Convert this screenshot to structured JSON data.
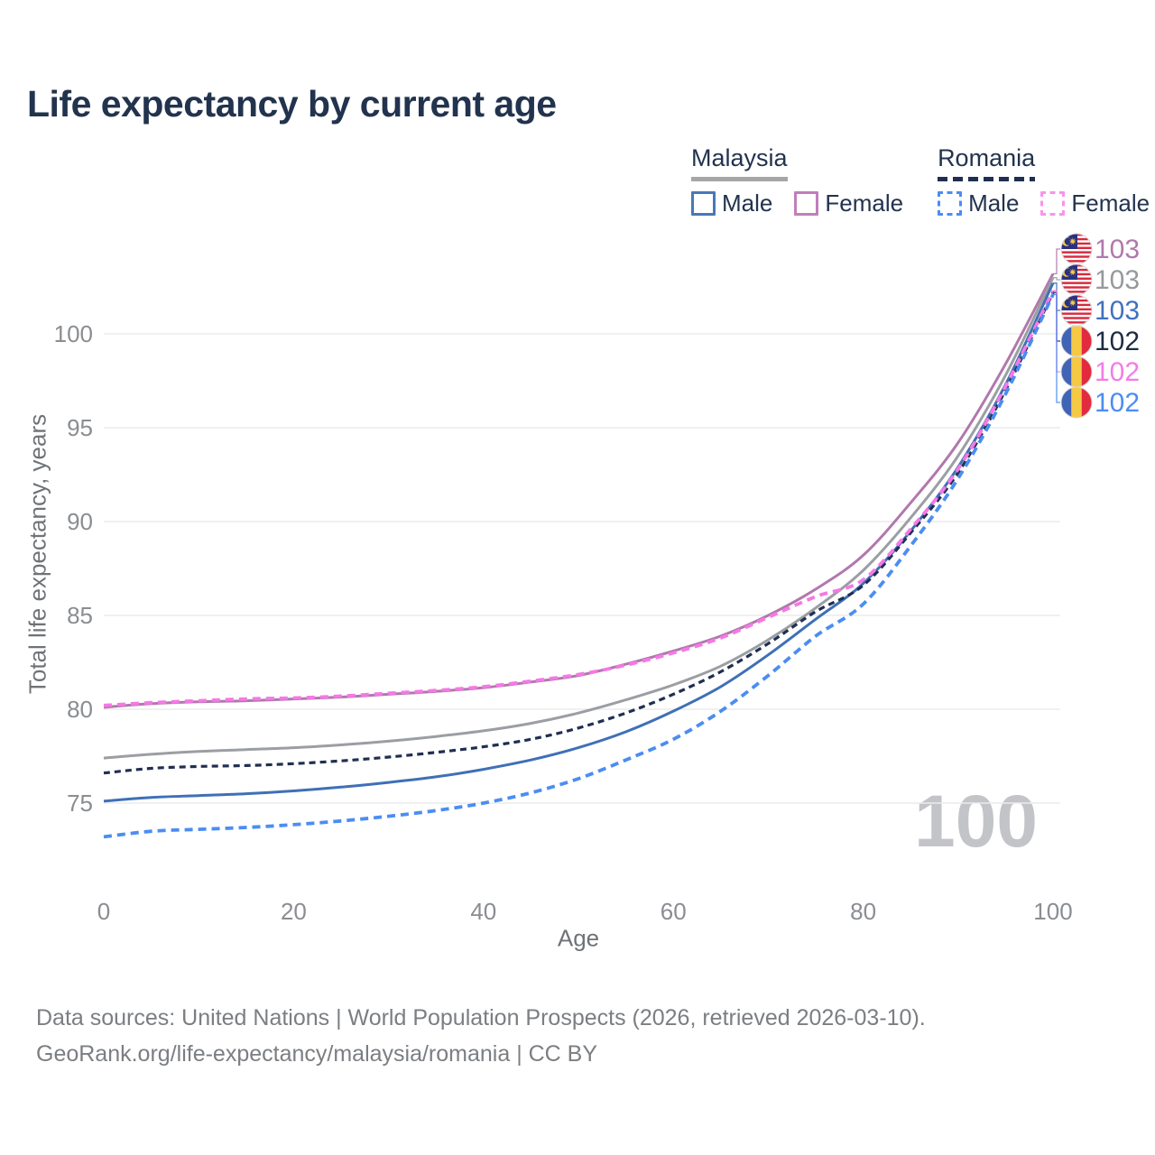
{
  "title": "Life expectancy by current age",
  "legend": {
    "groups": [
      {
        "country": "Malaysia",
        "line_style": "solid",
        "underline_color": "#a6a6a6",
        "items": [
          {
            "label": "Male",
            "color": "#3e70b6",
            "dashed": false
          },
          {
            "label": "Female",
            "color": "#b178ad",
            "dashed": false
          }
        ]
      },
      {
        "country": "Romania",
        "line_style": "dashed",
        "underline_color": "#1f2f51",
        "items": [
          {
            "label": "Male",
            "color": "#4b8df2",
            "dashed": true
          },
          {
            "label": "Female",
            "color": "#f678e6",
            "dashed": true
          }
        ]
      }
    ]
  },
  "y_axis": {
    "label": "Total life expectancy, years"
  },
  "x_axis": {
    "label": "Age"
  },
  "watermark": "100",
  "footer": {
    "line1": "Data sources: United Nations | World Population Prospects (2026, retrieved 2026-03-10).",
    "line2": "GeoRank.org/life-expectancy/malaysia/romania | CC BY"
  },
  "chart_data": {
    "type": "line",
    "title": "Life expectancy by current age",
    "xlabel": "Age",
    "ylabel": "Total life expectancy, years",
    "x_ticks": [
      0,
      20,
      40,
      60,
      80,
      100
    ],
    "y_ticks": [
      75,
      80,
      85,
      90,
      95,
      100
    ],
    "xlim": [
      0,
      100
    ],
    "ylim": [
      72.5,
      104
    ],
    "grid": "horizontal",
    "legend_position": "top-right",
    "x": [
      0,
      5,
      10,
      15,
      20,
      25,
      30,
      35,
      40,
      45,
      50,
      55,
      60,
      65,
      70,
      75,
      80,
      85,
      90,
      95,
      100
    ],
    "series": [
      {
        "name": "Malaysia Female",
        "country": "Malaysia",
        "sex": "Female",
        "style": "solid",
        "color": "#b178ad",
        "label_color": "#b178ad",
        "end_label": "103",
        "values": [
          80.1,
          80.3,
          80.4,
          80.45,
          80.55,
          80.65,
          80.8,
          80.95,
          81.15,
          81.45,
          81.8,
          82.4,
          83.1,
          83.9,
          85.0,
          86.4,
          88.2,
          91.0,
          94.2,
          98.4,
          103.2
        ]
      },
      {
        "name": "Malaysia Both sexes",
        "country": "Malaysia",
        "sex": "All",
        "style": "solid",
        "color": "#9b9ea2",
        "label_color": "#97999c",
        "end_label": "103",
        "values": [
          77.4,
          77.6,
          77.75,
          77.85,
          77.95,
          78.1,
          78.3,
          78.55,
          78.85,
          79.25,
          79.8,
          80.5,
          81.3,
          82.3,
          83.7,
          85.4,
          87.4,
          90.2,
          93.5,
          97.8,
          103.0
        ]
      },
      {
        "name": "Malaysia Male",
        "country": "Malaysia",
        "sex": "Male",
        "style": "solid",
        "color": "#3e70b6",
        "label_color": "#4071bd",
        "end_label": "103",
        "values": [
          75.1,
          75.3,
          75.4,
          75.5,
          75.65,
          75.85,
          76.1,
          76.4,
          76.8,
          77.3,
          77.95,
          78.8,
          79.9,
          81.2,
          82.9,
          84.8,
          86.7,
          89.5,
          92.9,
          97.3,
          102.7
        ]
      },
      {
        "name": "Romania Both sexes",
        "country": "Romania",
        "sex": "All",
        "style": "dashed",
        "color": "#1f2f51",
        "label_color": "#1d2b45",
        "end_label": "102",
        "values": [
          76.6,
          76.85,
          76.95,
          77.0,
          77.1,
          77.25,
          77.45,
          77.7,
          78.0,
          78.4,
          79.0,
          79.8,
          80.8,
          82.0,
          83.5,
          85.2,
          86.6,
          89.4,
          92.6,
          97.0,
          102.2
        ]
      },
      {
        "name": "Romania Female",
        "country": "Romania",
        "sex": "Female",
        "style": "dashed",
        "color": "#f678e6",
        "label_color": "#f47ce6",
        "end_label": "102",
        "values": [
          80.2,
          80.35,
          80.45,
          80.55,
          80.6,
          80.7,
          80.85,
          81.0,
          81.2,
          81.5,
          81.85,
          82.35,
          83.0,
          83.8,
          84.9,
          86.0,
          86.9,
          89.6,
          92.8,
          97.2,
          102.3
        ]
      },
      {
        "name": "Romania Male",
        "country": "Romania",
        "sex": "Male",
        "style": "dashed",
        "color": "#4b8df2",
        "label_color": "#4b8df2",
        "end_label": "102",
        "values": [
          73.2,
          73.5,
          73.6,
          73.7,
          73.85,
          74.05,
          74.3,
          74.6,
          75.0,
          75.55,
          76.3,
          77.3,
          78.4,
          79.9,
          81.8,
          83.9,
          85.6,
          88.7,
          92.3,
          96.8,
          102.1
        ]
      }
    ]
  }
}
